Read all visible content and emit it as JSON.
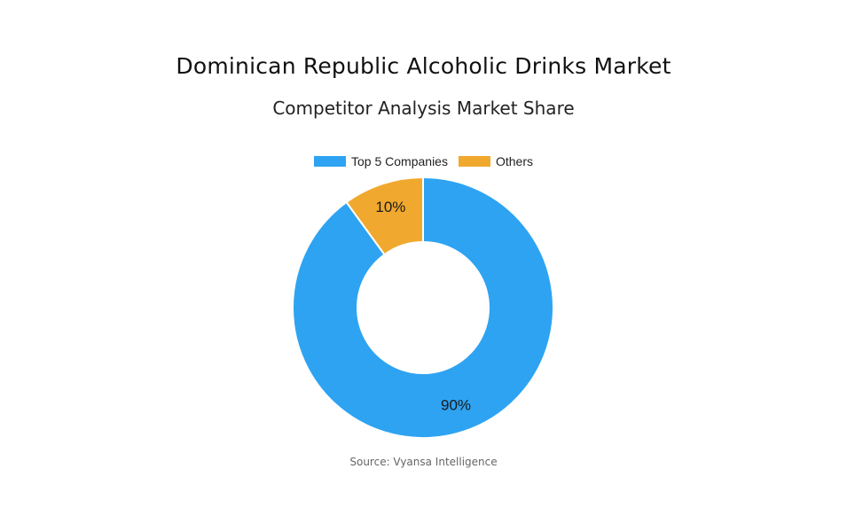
{
  "header": {
    "title": "Dominican Republic Alcoholic Drinks Market",
    "subtitle": "Competitor Analysis Market Share"
  },
  "chart_data": {
    "type": "pie",
    "variant": "donut",
    "title": "Dominican Republic Alcoholic Drinks Market",
    "subtitle": "Competitor Analysis Market Share",
    "categories": [
      "Top 5 Companies",
      "Others"
    ],
    "values": [
      90,
      10
    ],
    "labels": [
      "90%",
      "10%"
    ],
    "colors": [
      "#2ea3f2",
      "#f0a92e"
    ],
    "legend_position": "top"
  },
  "footer": {
    "source": "Source: Vyansa Intelligence"
  }
}
